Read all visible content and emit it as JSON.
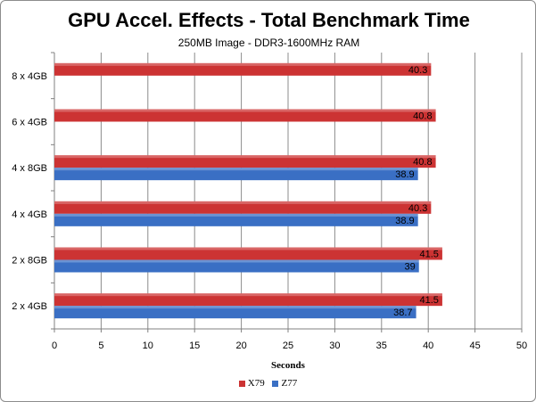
{
  "chart_data": {
    "type": "bar",
    "orientation": "horizontal",
    "title": "GPU Accel. Effects - Total Benchmark Time",
    "subtitle": "250MB Image - DDR3-1600MHz RAM",
    "xlabel": "Seconds",
    "categories": [
      "8 x 4GB",
      "6 x 4GB",
      "4 x 8GB",
      "4 x 4GB",
      "2 x 8GB",
      "2 x 4GB"
    ],
    "series": [
      {
        "name": "X79",
        "color": "#cc3333",
        "values": [
          40.3,
          40.8,
          40.8,
          40.3,
          41.5,
          41.5
        ],
        "labels": [
          "40.3",
          "40.8",
          "40.8",
          "40.3",
          "41.5",
          "41.5"
        ]
      },
      {
        "name": "Z77",
        "color": "#3a6fc4",
        "values": [
          null,
          null,
          38.9,
          38.9,
          39,
          38.7
        ],
        "labels": [
          "",
          "",
          "38.9",
          "38.9",
          "39",
          "38.7"
        ]
      }
    ],
    "xlim": [
      0,
      50
    ],
    "xticks": [
      "0",
      "5",
      "10",
      "15",
      "20",
      "25",
      "30",
      "35",
      "40",
      "45",
      "50"
    ],
    "grid": true,
    "legend_position": "bottom"
  }
}
